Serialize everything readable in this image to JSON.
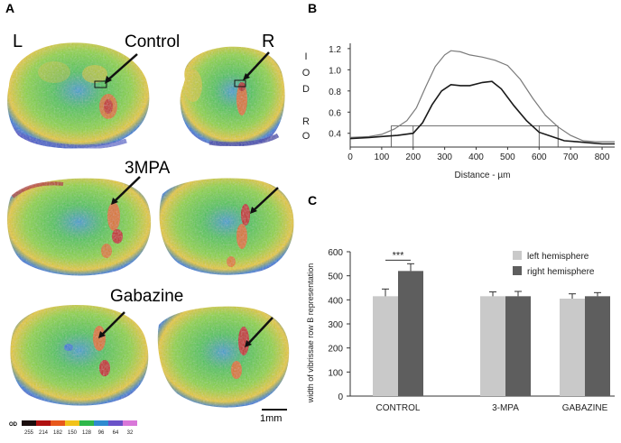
{
  "panels": {
    "a": "A",
    "b": "B",
    "c": "C"
  },
  "panel_a": {
    "side_left": "L",
    "side_right": "R",
    "rows": [
      {
        "label": "Control"
      },
      {
        "label": "3MPA"
      },
      {
        "label": "Gabazine"
      }
    ],
    "scale_bar": "1mm",
    "colorbar": {
      "title": "OD",
      "ticks": [
        "255",
        "214",
        "182",
        "150",
        "128",
        "96",
        "64",
        "32"
      ],
      "colors": [
        "#1a0d0d",
        "#b01010",
        "#e8581c",
        "#f2c21a",
        "#2fb84a",
        "#2e8bd0",
        "#6a52c8",
        "#d977d9"
      ]
    },
    "map_colors": {
      "low": "#2a6fd6",
      "mid": "#40c25a",
      "high": "#f2d030",
      "peak": "#d12a1a",
      "dark": "#4a1008"
    }
  },
  "chart_data": [
    {
      "type": "line",
      "title": "",
      "ylabel_chars": [
        "I",
        "O",
        "D",
        "",
        "R",
        "O"
      ],
      "xlabel": "Distance - µm",
      "xlim": [
        0,
        840
      ],
      "ylim": [
        0.27,
        1.25
      ],
      "xticks": [
        "0",
        "100",
        "200",
        "300",
        "400",
        "500",
        "600",
        "700",
        "800"
      ],
      "yticks": [
        "0.4",
        "0.6",
        "0.8",
        "1.0",
        "1.2"
      ],
      "threshold_y": 0.47,
      "threshold_x": [
        130,
        660
      ],
      "markers": [
        {
          "x": 130,
          "y": 0.47
        },
        {
          "x": 200,
          "y": 0.47
        },
        {
          "x": 600,
          "y": 0.47
        },
        {
          "x": 660,
          "y": 0.47
        }
      ],
      "series": [
        {
          "name": "upper",
          "color": "#7a7a7a",
          "x": [
            0,
            60,
            100,
            140,
            180,
            210,
            240,
            270,
            300,
            320,
            350,
            380,
            420,
            460,
            500,
            540,
            580,
            620,
            660,
            700,
            740,
            780,
            820,
            840
          ],
          "y": [
            0.36,
            0.37,
            0.39,
            0.44,
            0.52,
            0.64,
            0.84,
            1.03,
            1.14,
            1.18,
            1.17,
            1.14,
            1.12,
            1.09,
            1.04,
            0.91,
            0.73,
            0.57,
            0.46,
            0.38,
            0.33,
            0.32,
            0.32,
            0.32
          ]
        },
        {
          "name": "lower",
          "color": "#1a1a1a",
          "x": [
            0,
            60,
            100,
            150,
            200,
            230,
            260,
            290,
            320,
            350,
            380,
            420,
            450,
            480,
            520,
            560,
            600,
            640,
            680,
            720,
            760,
            800,
            840
          ],
          "y": [
            0.35,
            0.36,
            0.37,
            0.38,
            0.4,
            0.5,
            0.67,
            0.8,
            0.86,
            0.85,
            0.85,
            0.88,
            0.89,
            0.82,
            0.66,
            0.52,
            0.41,
            0.37,
            0.33,
            0.32,
            0.31,
            0.3,
            0.3
          ]
        }
      ]
    },
    {
      "type": "bar",
      "ylabel": "width of vibrissae row B representation",
      "ylim": [
        0,
        600
      ],
      "yticks": [
        "0",
        "100",
        "200",
        "300",
        "400",
        "500",
        "600"
      ],
      "categories": [
        "CONTROL",
        "3-MPA",
        "GABAZINE"
      ],
      "series": [
        {
          "name": "left hemisphere",
          "color": "#c9c9c9",
          "values": [
            415,
            415,
            405
          ],
          "errors": [
            30,
            18,
            20
          ]
        },
        {
          "name": "right hemisphere",
          "color": "#5e5e5e",
          "values": [
            520,
            415,
            415
          ],
          "errors": [
            30,
            20,
            15
          ]
        }
      ],
      "significance": "***",
      "legend_position": "top-right"
    }
  ]
}
